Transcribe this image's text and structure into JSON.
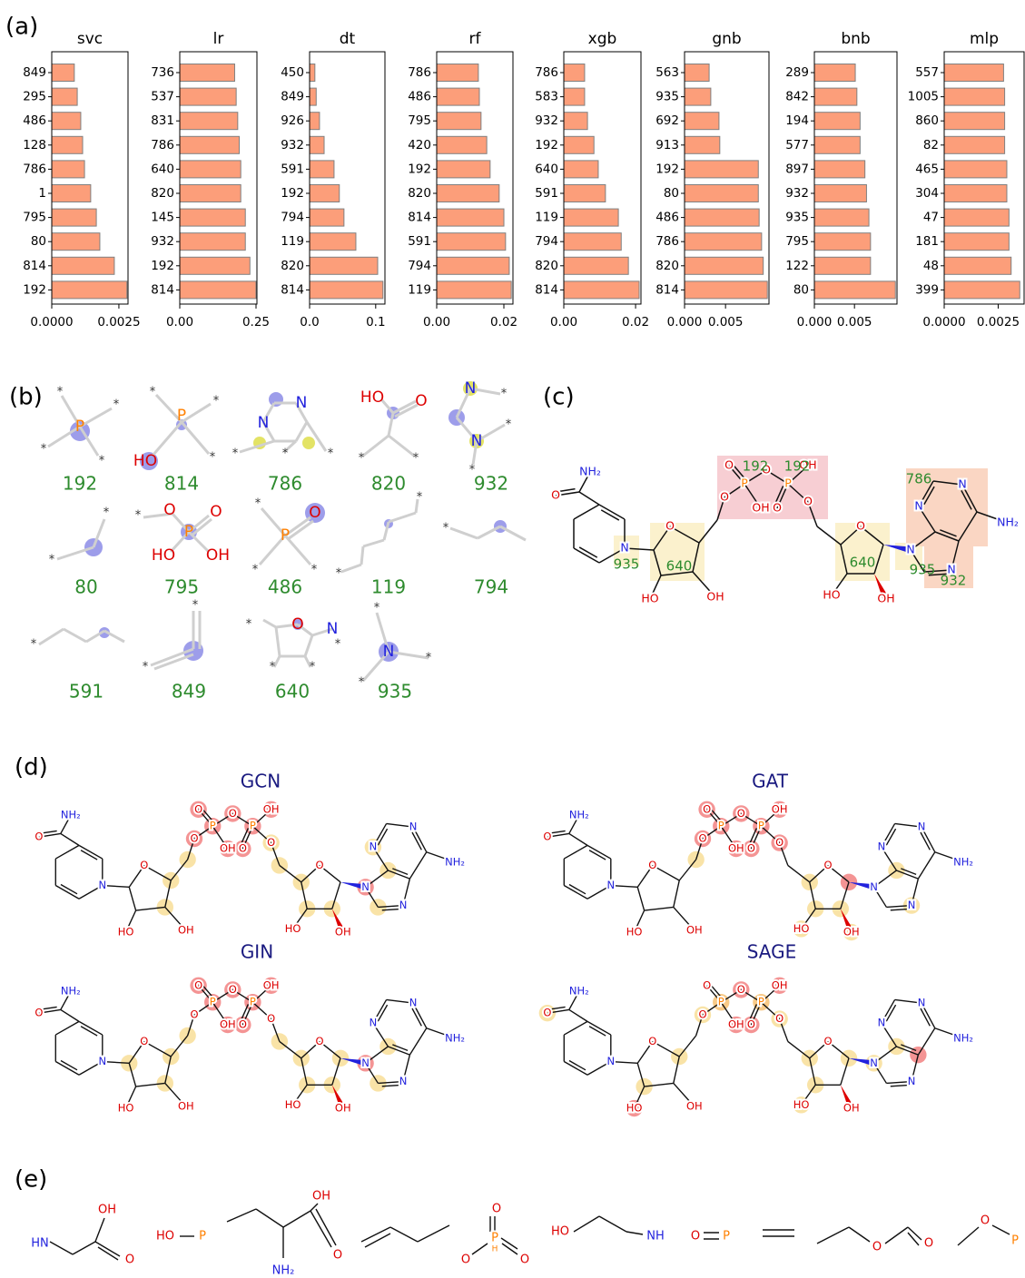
{
  "chart_data": [
    {
      "type": "bar",
      "orientation": "horizontal",
      "title": "svc",
      "color": "#fc9e7a",
      "categories": [
        "849",
        "295",
        "486",
        "128",
        "786",
        "1",
        "795",
        "80",
        "814",
        "192"
      ],
      "values": [
        0.00084,
        0.00095,
        0.00108,
        0.00115,
        0.00122,
        0.00145,
        0.00166,
        0.00179,
        0.00233,
        0.0028
      ],
      "xlim": [
        0,
        0.00284
      ],
      "xticks": [
        {
          "value": 0,
          "label": "0.0000"
        },
        0.0025
      ]
    },
    {
      "type": "bar",
      "orientation": "horizontal",
      "title": "lr",
      "color": "#fc9e7a",
      "categories": [
        "736",
        "537",
        "831",
        "786",
        "640",
        "820",
        "145",
        "932",
        "192",
        "814"
      ],
      "values": [
        0.18,
        0.185,
        0.19,
        0.195,
        0.2,
        0.2,
        0.215,
        0.215,
        0.23,
        0.25
      ],
      "xlim": [
        0,
        0.253
      ],
      "xticks": [
        {
          "value": 0,
          "label": "0.00"
        },
        0.25
      ]
    },
    {
      "type": "bar",
      "orientation": "horizontal",
      "title": "dt",
      "color": "#fc9e7a",
      "categories": [
        "450",
        "849",
        "926",
        "932",
        "591",
        "192",
        "794",
        "119",
        "820",
        "814"
      ],
      "values": [
        0.008,
        0.01,
        0.015,
        0.022,
        0.037,
        0.045,
        0.052,
        0.07,
        0.103,
        0.111
      ],
      "xlim": [
        0,
        0.114
      ],
      "xticks": [
        {
          "value": 0,
          "label": "0.0"
        },
        0.1
      ]
    },
    {
      "type": "bar",
      "orientation": "horizontal",
      "title": "rf",
      "color": "#fc9e7a",
      "categories": [
        "786",
        "486",
        "795",
        "420",
        "192",
        "820",
        "814",
        "591",
        "794",
        "119"
      ],
      "values": [
        0.0124,
        0.0127,
        0.0132,
        0.0149,
        0.0159,
        0.0186,
        0.02,
        0.0205,
        0.0216,
        0.0222
      ],
      "xlim": [
        0,
        0.0227
      ],
      "xticks": [
        {
          "value": 0,
          "label": "0.00"
        },
        0.02
      ]
    },
    {
      "type": "bar",
      "orientation": "horizontal",
      "title": "xgb",
      "color": "#fc9e7a",
      "categories": [
        "786",
        "583",
        "932",
        "192",
        "640",
        "591",
        "119",
        "794",
        "820",
        "814"
      ],
      "values": [
        0.0058,
        0.0058,
        0.0066,
        0.0084,
        0.0096,
        0.0116,
        0.0152,
        0.016,
        0.018,
        0.021
      ],
      "xlim": [
        0,
        0.0215
      ],
      "xticks": [
        {
          "value": 0,
          "label": "0.00"
        },
        0.02
      ]
    },
    {
      "type": "bar",
      "orientation": "horizontal",
      "title": "gnb",
      "color": "#fc9e7a",
      "categories": [
        "563",
        "935",
        "692",
        "913",
        "192",
        "80",
        "486",
        "786",
        "820",
        "814"
      ],
      "values": [
        0.003,
        0.0032,
        0.0042,
        0.0043,
        0.009,
        0.009,
        0.0091,
        0.0094,
        0.0096,
        0.0101
      ],
      "xlim": [
        0,
        0.0103
      ],
      "xticks": [
        {
          "value": 0,
          "label": "0.000"
        },
        0.005
      ]
    },
    {
      "type": "bar",
      "orientation": "horizontal",
      "title": "bnb",
      "color": "#fc9e7a",
      "categories": [
        "289",
        "842",
        "194",
        "577",
        "897",
        "932",
        "935",
        "795",
        "122",
        "80"
      ],
      "values": [
        0.0051,
        0.0053,
        0.0057,
        0.0057,
        0.0063,
        0.0065,
        0.0068,
        0.007,
        0.007,
        0.0101
      ],
      "xlim": [
        0,
        0.0103
      ],
      "xticks": [
        {
          "value": 0,
          "label": "0.000"
        },
        0.005
      ]
    },
    {
      "type": "bar",
      "orientation": "horizontal",
      "title": "mlp",
      "color": "#fc9e7a",
      "categories": [
        "557",
        "1005",
        "860",
        "82",
        "465",
        "304",
        "47",
        "181",
        "48",
        "399"
      ],
      "values": [
        0.00275,
        0.0028,
        0.0028,
        0.0028,
        0.0029,
        0.0029,
        0.003,
        0.003,
        0.0031,
        0.0035
      ],
      "xlim": [
        0,
        0.0037
      ],
      "xticks": [
        {
          "value": 0,
          "label": "0.0000"
        },
        0.0025
      ]
    }
  ],
  "panel_labels": [
    "(a)",
    "(b)",
    "(c)",
    "(d)",
    "(e)"
  ],
  "fragments": [
    {
      "label": "192",
      "atoms": [
        "*",
        "*",
        "P",
        "*",
        "*"
      ]
    },
    {
      "label": "814",
      "atoms": [
        "*",
        "*",
        "P",
        "HO",
        "*"
      ]
    },
    {
      "label": "786",
      "atoms": [
        "N",
        "N",
        "*",
        "*",
        "*"
      ]
    },
    {
      "label": "820",
      "atoms": [
        "HO",
        "O",
        "*",
        "*"
      ]
    },
    {
      "label": "932",
      "atoms": [
        "N",
        "*",
        "N",
        "*",
        "*"
      ]
    },
    {
      "label": "80",
      "atoms": [
        "*",
        "*"
      ]
    },
    {
      "label": "795",
      "atoms": [
        "O",
        "O",
        "HO",
        "OH",
        "*",
        "P"
      ]
    },
    {
      "label": "486",
      "atoms": [
        "*",
        "O",
        "P",
        "*",
        "*"
      ]
    },
    {
      "label": "119",
      "atoms": [
        "*",
        "*"
      ]
    },
    {
      "label": "794",
      "atoms": [
        "*"
      ]
    },
    {
      "label": "591",
      "atoms": [
        "*"
      ]
    },
    {
      "label": "849",
      "atoms": [
        "*",
        "*"
      ]
    },
    {
      "label": "640",
      "atoms": [
        "O",
        "N",
        "*",
        "*",
        "*",
        "*"
      ]
    },
    {
      "label": "935",
      "atoms": [
        "*",
        "N",
        "*",
        "*"
      ]
    }
  ],
  "nad": {
    "atoms": [
      "NH₂",
      "O",
      "N",
      "O",
      "HO",
      "OH",
      "O",
      "P",
      "O",
      "OH",
      "O",
      "P",
      "O",
      "OH",
      "O",
      "O",
      "HO",
      "OH",
      "N",
      "N",
      "N",
      "N",
      "NH₂"
    ]
  },
  "panel_c": {
    "labels": [
      "192",
      "192",
      "935",
      "640",
      "640",
      "935",
      "786",
      "932"
    ]
  },
  "panel_d": {
    "models": [
      "GCN",
      "GAT",
      "GIN",
      "SAGE"
    ]
  },
  "panel_e": {
    "fragments": [
      [
        "HN",
        "OH",
        "O"
      ],
      [
        "HO",
        "P"
      ],
      [
        "OH",
        "O",
        "NH₂"
      ],
      [
        "O",
        "P",
        "H",
        "O",
        "O"
      ],
      [
        "HO",
        "NH"
      ],
      [
        "O",
        "P"
      ],
      [
        "O",
        "O"
      ],
      [
        "O",
        "P"
      ]
    ]
  }
}
